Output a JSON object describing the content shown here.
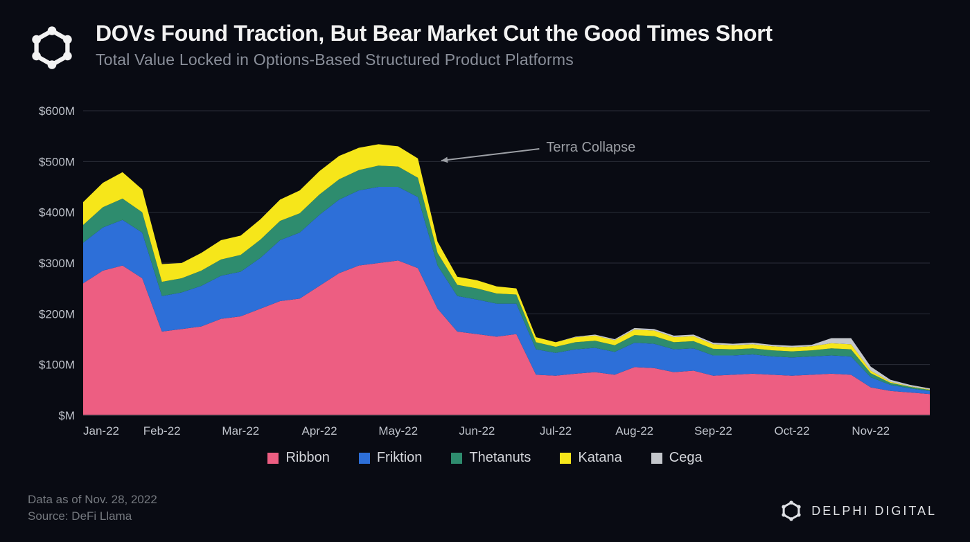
{
  "title": "DOVs Found Traction, But Bear Market Cut the Good Times Short",
  "subtitle": "Total Value Locked in Options-Based Structured Product Platforms",
  "footer_date": "Data as of Nov. 28, 2022",
  "footer_source": "Source: DeFi Llama",
  "brand_text": "DELPHI DIGITAL",
  "chart": {
    "type": "stacked-area",
    "background_color": "#090b13",
    "grid_color": "#2a2e38",
    "axis_label_color": "#bfc3cb",
    "axis_font_size": 17,
    "ylim": [
      0,
      600
    ],
    "ytick_step": 100,
    "y_tick_labels": [
      "$M",
      "$100M",
      "$200M",
      "$300M",
      "$400M",
      "$500M",
      "$600M"
    ],
    "x_tick_labels": [
      "Jan-22",
      "Feb-22",
      "Mar-22",
      "Apr-22",
      "May-22",
      "Jun-22",
      "Jul-22",
      "Aug-22",
      "Sep-22",
      "Oct-22",
      "Nov-22"
    ],
    "annotation": {
      "text": "Terra Collapse",
      "color": "#9da0a6",
      "font_size": 20,
      "arrow_from_idx": 20.0,
      "arrow_from_y": 495,
      "target_idx": 17.7,
      "target_y": 510
    },
    "series": [
      {
        "name": "Ribbon",
        "color": "#ed5e82"
      },
      {
        "name": "Friktion",
        "color": "#2d6fd8"
      },
      {
        "name": "Thetanuts",
        "color": "#2e8c6e"
      },
      {
        "name": "Katana",
        "color": "#f6e61a"
      },
      {
        "name": "Cega",
        "color": "#c4c7cc"
      }
    ],
    "x_samples": 44,
    "ribbon": [
      260,
      285,
      295,
      270,
      165,
      170,
      175,
      190,
      195,
      210,
      225,
      230,
      255,
      280,
      295,
      300,
      305,
      290,
      210,
      165,
      160,
      155,
      160,
      80,
      78,
      82,
      85,
      80,
      95,
      93,
      85,
      88,
      78,
      80,
      82,
      80,
      78,
      80,
      82,
      80,
      55,
      48,
      45,
      42
    ],
    "friktion": [
      80,
      85,
      90,
      90,
      70,
      72,
      80,
      85,
      88,
      100,
      120,
      130,
      140,
      145,
      148,
      150,
      145,
      140,
      85,
      70,
      68,
      65,
      60,
      50,
      45,
      48,
      48,
      45,
      48,
      48,
      45,
      44,
      40,
      38,
      38,
      36,
      36,
      36,
      36,
      36,
      20,
      12,
      8,
      6
    ],
    "thetanuts": [
      35,
      40,
      42,
      40,
      28,
      28,
      30,
      32,
      33,
      36,
      38,
      38,
      40,
      40,
      40,
      42,
      40,
      38,
      25,
      22,
      22,
      20,
      18,
      14,
      12,
      14,
      14,
      13,
      15,
      15,
      14,
      14,
      13,
      12,
      12,
      12,
      12,
      12,
      14,
      14,
      8,
      4,
      3,
      2
    ],
    "katana": [
      45,
      48,
      52,
      45,
      35,
      30,
      35,
      38,
      38,
      40,
      42,
      45,
      46,
      46,
      44,
      42,
      40,
      38,
      22,
      16,
      16,
      14,
      12,
      10,
      9,
      10,
      10,
      10,
      11,
      11,
      10,
      10,
      9,
      8,
      8,
      8,
      8,
      8,
      10,
      10,
      5,
      2,
      1,
      1
    ],
    "cega": [
      0,
      0,
      0,
      0,
      0,
      0,
      0,
      0,
      0,
      0,
      0,
      0,
      0,
      0,
      0,
      0,
      0,
      0,
      0,
      0,
      0,
      0,
      0,
      0,
      0,
      1,
      2,
      2,
      3,
      3,
      3,
      3,
      3,
      3,
      3,
      3,
      3,
      3,
      10,
      12,
      8,
      4,
      3,
      2
    ]
  }
}
